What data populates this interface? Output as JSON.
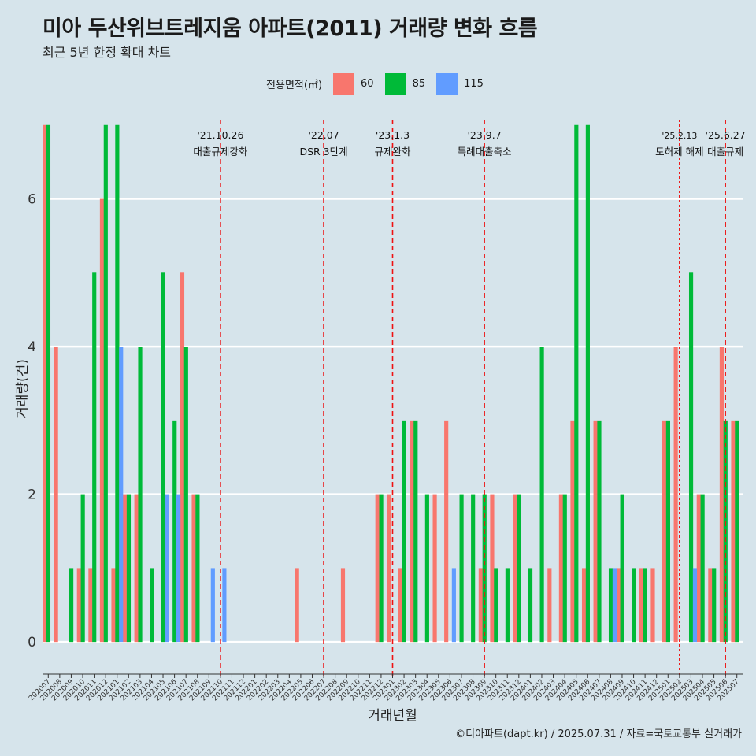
{
  "title": "미아 두산위브트레지움 아파트(2011) 거래량 변화 흐름",
  "subtitle": "최근 5년 한정 확대 차트",
  "legend_title": "전용면적(㎡)",
  "caption": "©디아파트(dapt.kr) / 2025.07.31 / 자료=국토교통부 실거래가",
  "colors": {
    "60": "#f8766d",
    "85": "#00ba38",
    "115": "#619cff",
    "vline": "#ee1111",
    "grid": "#ffffff",
    "background": "#d6e4eb"
  },
  "chart_data": {
    "type": "bar",
    "xlabel": "거래년월",
    "ylabel": "거래량(건)",
    "ylim": [
      -0.35,
      7.2
    ],
    "yticks": [
      0,
      2,
      4,
      6
    ],
    "grid": true,
    "legend_position": "top",
    "categories": [
      "202007",
      "202008",
      "202009",
      "202010",
      "202011",
      "202012",
      "202101",
      "202102",
      "202103",
      "202104",
      "202105",
      "202106",
      "202107",
      "202108",
      "202109",
      "202110",
      "202111",
      "202112",
      "202201",
      "202202",
      "202203",
      "202204",
      "202205",
      "202206",
      "202207",
      "202208",
      "202209",
      "202210",
      "202211",
      "202212",
      "202301",
      "202302",
      "202303",
      "202304",
      "202305",
      "202306",
      "202307",
      "202308",
      "202309",
      "202310",
      "202311",
      "202312",
      "202401",
      "202402",
      "202403",
      "202404",
      "202405",
      "202406",
      "202407",
      "202408",
      "202409",
      "202410",
      "202411",
      "202412",
      "202501",
      "202502",
      "202503",
      "202504",
      "202505",
      "202506",
      "202507"
    ],
    "tick_labels": [
      "202007",
      "202008",
      "202009",
      "202010",
      "202011",
      "202012",
      "202101",
      "202102",
      "202103",
      "202104",
      "202105",
      "202106",
      "202107",
      "202108",
      "202109",
      "202110",
      "202111",
      "202112",
      "202201",
      "202202",
      "202203",
      "202204",
      "202205",
      "202206",
      "202207",
      "202208",
      "202209",
      "202210",
      "202211",
      "202212",
      "202301",
      "202302",
      "202303",
      "202304",
      "202305",
      "202306",
      "202307",
      "202308",
      "202309",
      "202310",
      "202311",
      "202312",
      "202401",
      "202402",
      "202403",
      "202404",
      "202405",
      "202406",
      "202407",
      "202408",
      "202409",
      "202410",
      "202411",
      "202412",
      "202501",
      "202502",
      "202503",
      "202504",
      "202505",
      "202506",
      "202507"
    ],
    "series": [
      {
        "name": "60",
        "color": "#f8766d",
        "values": [
          7,
          4,
          0,
          1,
          1,
          6,
          1,
          2,
          2,
          0,
          0,
          0,
          5,
          2,
          0,
          0,
          0,
          0,
          0,
          0,
          0,
          0,
          1,
          0,
          0,
          0,
          1,
          0,
          0,
          2,
          2,
          1,
          3,
          0,
          2,
          3,
          0,
          0,
          1,
          2,
          0,
          2,
          0,
          0,
          1,
          2,
          3,
          1,
          3,
          0,
          1,
          0,
          1,
          1,
          3,
          4,
          0,
          2,
          1,
          4,
          3
        ]
      },
      {
        "name": "85",
        "color": "#00ba38",
        "values": [
          7,
          0,
          1,
          2,
          5,
          7,
          7,
          2,
          4,
          1,
          5,
          3,
          4,
          2,
          0,
          0,
          0,
          0,
          0,
          0,
          0,
          0,
          0,
          0,
          0,
          0,
          0,
          0,
          0,
          2,
          0,
          3,
          3,
          2,
          0,
          0,
          2,
          2,
          2,
          1,
          1,
          2,
          1,
          4,
          0,
          2,
          7,
          7,
          3,
          1,
          2,
          1,
          1,
          0,
          3,
          0,
          5,
          2,
          1,
          3,
          3
        ]
      },
      {
        "name": "115",
        "color": "#619cff",
        "values": [
          0,
          0,
          0,
          0,
          0,
          0,
          4,
          0,
          0,
          0,
          2,
          2,
          0,
          0,
          1,
          1,
          0,
          0,
          0,
          0,
          0,
          0,
          0,
          0,
          0,
          0,
          0,
          0,
          0,
          0,
          0,
          0,
          0,
          0,
          0,
          1,
          0,
          0,
          0,
          0,
          0,
          0,
          0,
          0,
          0,
          0,
          0,
          0,
          0,
          1,
          0,
          0,
          0,
          0,
          0,
          0,
          1,
          0,
          0,
          0,
          0
        ]
      }
    ],
    "events": [
      {
        "category": "202110",
        "date": "'21.10.26",
        "label": "대출규제강화",
        "style": "dashed"
      },
      {
        "category": "202207",
        "date": "'22.07",
        "label": "DSR 3단계",
        "style": "dashed"
      },
      {
        "category": "202301",
        "date": "'23.1.3",
        "label": "규제완화",
        "style": "dashed"
      },
      {
        "category": "202309",
        "date": "'23.9.7",
        "label": "특례대출축소",
        "style": "dashed"
      },
      {
        "category": "202502",
        "date": "'25.2.13",
        "label": "토허제 해제",
        "style": "dotted"
      },
      {
        "category": "202506",
        "date": "'25.6.27",
        "label": "대출규제",
        "style": "dashed"
      }
    ]
  }
}
